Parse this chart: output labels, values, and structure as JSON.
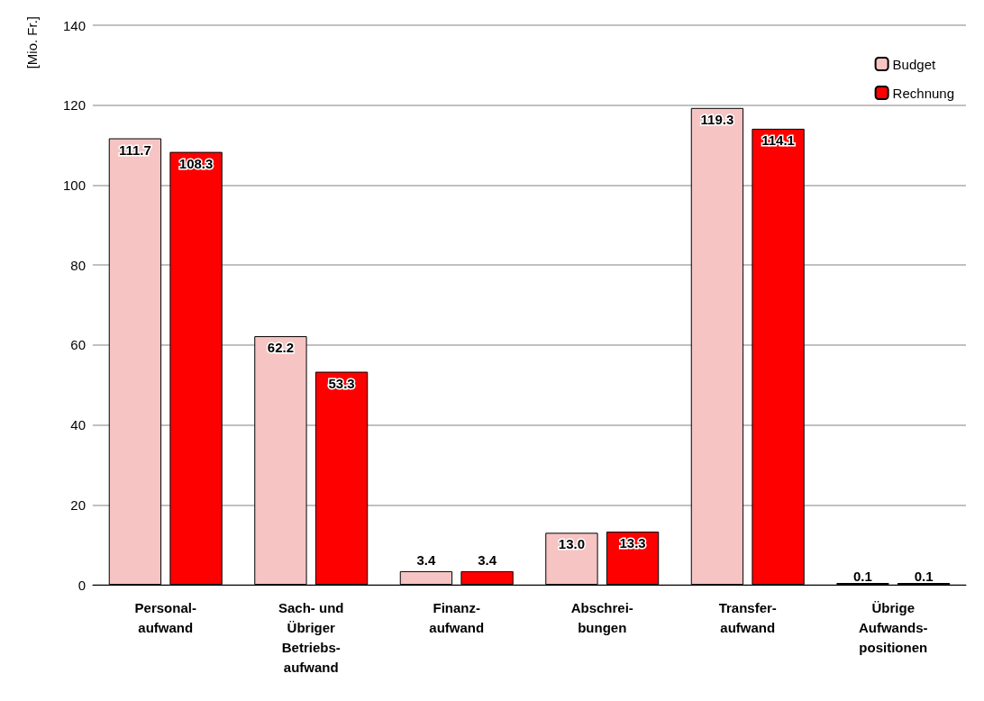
{
  "chart_data": {
    "type": "bar",
    "ylabel": "[Mio. Fr.]",
    "categories": [
      "Personal-\naufwand",
      "Sach- und\nÜbriger\nBetriebs-\naufwand",
      "Finanz-\naufwand",
      "Abschrei-\nbungen",
      "Transfer-\naufwand",
      "Übrige\nAufwands-\npositionen"
    ],
    "series": [
      {
        "name": "Budget",
        "color": "#f7c4c4",
        "values": [
          111.7,
          62.2,
          3.4,
          13.0,
          119.3,
          0.1
        ],
        "value_labels": [
          "111.7",
          "62.2",
          "3.4",
          "13.0",
          "119.3",
          "0.1"
        ]
      },
      {
        "name": "Rechnung",
        "color": "#ff0000",
        "values": [
          108.3,
          53.3,
          3.4,
          13.3,
          114.1,
          0.1
        ],
        "value_labels": [
          "108.3",
          "53.3",
          "3.4",
          "13.3",
          "114.1",
          "0.1"
        ]
      }
    ],
    "ylim": [
      0,
      140
    ],
    "yticks": [
      0,
      20,
      40,
      60,
      80,
      100,
      120,
      140
    ],
    "grid": "y",
    "legend": "top right"
  }
}
